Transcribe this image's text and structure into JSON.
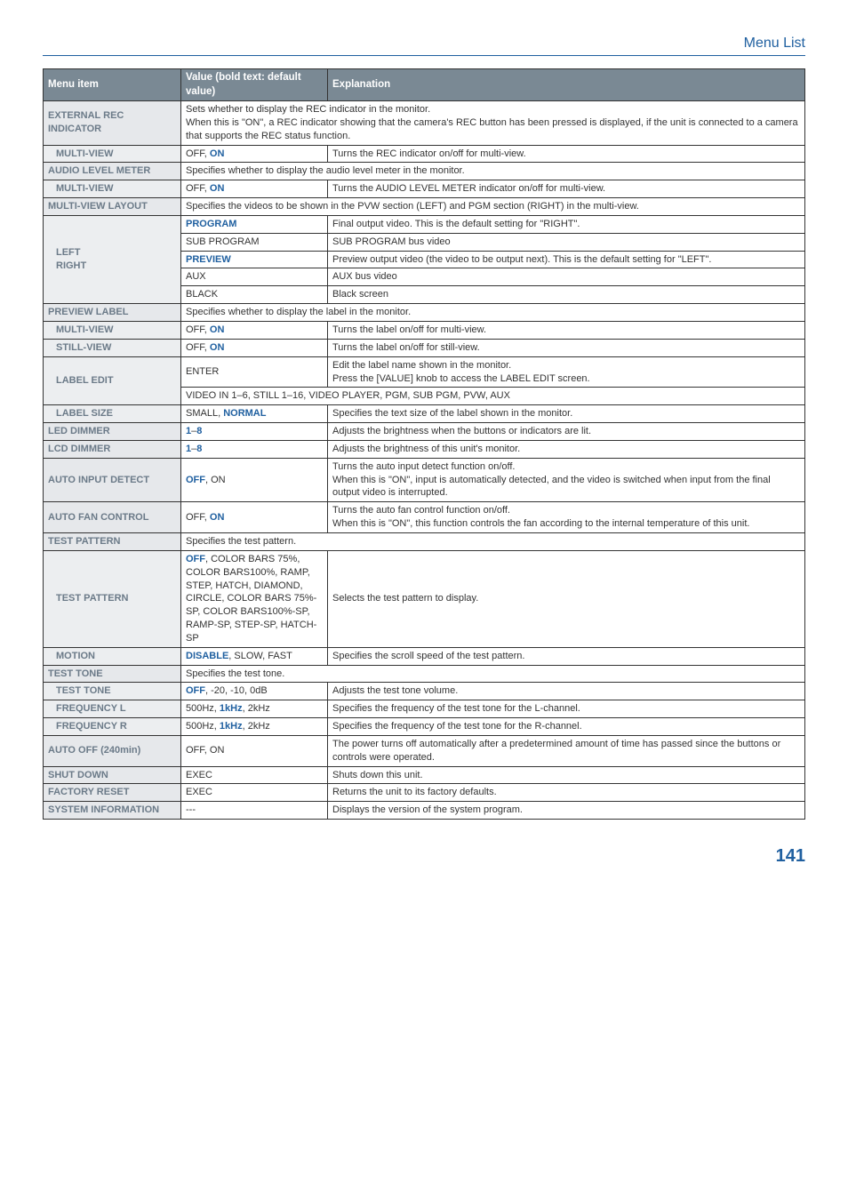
{
  "header": {
    "title": "Menu List"
  },
  "columns": {
    "c1": "Menu item",
    "c2": "Value (bold text: default value)",
    "c3": "Explanation"
  },
  "rows": [
    {
      "t": "row",
      "menuCls": "menu",
      "menuSpan": 1,
      "menu": "EXTERNAL REC INDICATOR",
      "expl_colspan": 2,
      "expl": "Sets whether to display the REC indicator in the monitor.\nWhen this is \"ON\", a REC indicator showing that the camera's REC button has been pressed is displayed, if the unit is connected to a camera that supports the REC status function."
    },
    {
      "t": "row",
      "menuCls": "sub1",
      "menu": "MULTI-VIEW",
      "val_pre": "OFF, ",
      "val_bold": "ON",
      "val_post": "",
      "expl": "Turns the REC indicator on/off for multi-view."
    },
    {
      "t": "row",
      "menuCls": "menu",
      "menu": "AUDIO LEVEL METER",
      "expl_colspan": 2,
      "expl": "Specifies whether to display the audio level meter in the monitor."
    },
    {
      "t": "row",
      "menuCls": "sub1",
      "menu": "MULTI-VIEW",
      "val_pre": "OFF, ",
      "val_bold": "ON",
      "val_post": "",
      "expl": "Turns the AUDIO LEVEL METER indicator on/off for multi-view."
    },
    {
      "t": "row",
      "menuCls": "menu",
      "menu": "MULTI-VIEW LAYOUT",
      "expl_colspan": 2,
      "expl": "Specifies the videos to be shown in the PVW section (LEFT) and PGM section (RIGHT) in the multi-view."
    },
    {
      "t": "row",
      "menuCls": "sub1",
      "menuRowspan": 5,
      "menu": "LEFT\nRIGHT",
      "val_pre": "",
      "val_bold": "PROGRAM",
      "val_post": "",
      "expl": "Final output video. This is the default setting for \"RIGHT\"."
    },
    {
      "t": "cont",
      "val_pre": "SUB PROGRAM",
      "val_bold": "",
      "val_post": "",
      "expl": "SUB PROGRAM bus video"
    },
    {
      "t": "cont",
      "val_pre": "",
      "val_bold": "PREVIEW",
      "val_post": "",
      "expl": "Preview output video (the video to be output next). This is the default setting for \"LEFT\"."
    },
    {
      "t": "cont",
      "val_pre": "AUX",
      "val_bold": "",
      "val_post": "",
      "expl": "AUX bus video"
    },
    {
      "t": "cont",
      "val_pre": "BLACK",
      "val_bold": "",
      "val_post": "",
      "expl": "Black screen"
    },
    {
      "t": "row",
      "menuCls": "menu",
      "menu": "PREVIEW LABEL",
      "expl_colspan": 2,
      "expl": "Specifies whether to display the label in the monitor."
    },
    {
      "t": "row",
      "menuCls": "sub1",
      "menu": "MULTI-VIEW",
      "val_pre": "OFF, ",
      "val_bold": "ON",
      "val_post": "",
      "expl": "Turns the label on/off for multi-view."
    },
    {
      "t": "row",
      "menuCls": "sub1",
      "menu": "STILL-VIEW",
      "val_pre": "OFF, ",
      "val_bold": "ON",
      "val_post": "",
      "expl": "Turns the label on/off for still-view."
    },
    {
      "t": "row",
      "menuCls": "sub1",
      "menuRowspan": 2,
      "menu": "LABEL EDIT",
      "val_pre": "ENTER",
      "val_bold": "",
      "val_post": "",
      "expl": "Edit the label name shown in the monitor.\nPress the [VALUE] knob to access the LABEL EDIT screen."
    },
    {
      "t": "cont",
      "expl_colspan": 2,
      "expl": "VIDEO IN 1–6, STILL 1–16, VIDEO PLAYER, PGM, SUB PGM, PVW, AUX"
    },
    {
      "t": "row",
      "menuCls": "sub1",
      "menu": "LABEL SIZE",
      "val_pre": "SMALL, ",
      "val_bold": "NORMAL",
      "val_post": "",
      "expl": "Specifies the text size of the label shown in the monitor."
    },
    {
      "t": "row",
      "menuCls": "menu",
      "menu": "LED DIMMER",
      "val_pre": "",
      "val_bold": "1",
      "val_post": "–",
      "val_bold2": "8",
      "expl": "Adjusts the brightness when the buttons or indicators are lit."
    },
    {
      "t": "row",
      "menuCls": "menu",
      "menu": "LCD DIMMER",
      "val_pre": "",
      "val_bold": "1",
      "val_post": "–",
      "val_bold2": "8",
      "expl": "Adjusts the brightness of this unit's monitor."
    },
    {
      "t": "row",
      "menuCls": "menu",
      "menu": "AUTO INPUT DETECT",
      "val_pre": "",
      "val_bold": "OFF",
      "val_post": ", ON",
      "expl": "Turns the auto input detect function on/off.\nWhen this is \"ON\", input is automatically detected, and the video is switched when input from the final output video is interrupted."
    },
    {
      "t": "row",
      "menuCls": "menu",
      "menu": "AUTO FAN CONTROL",
      "val_pre": "OFF, ",
      "val_bold": "ON",
      "val_post": "",
      "expl": "Turns the auto fan control function on/off.\nWhen this is \"ON\", this function controls the fan according to the internal temperature of this unit."
    },
    {
      "t": "row",
      "menuCls": "menu",
      "menu": "TEST PATTERN",
      "expl_colspan": 2,
      "expl": "Specifies the test pattern."
    },
    {
      "t": "row",
      "menuCls": "sub1",
      "menu": "TEST PATTERN",
      "val_pre": "",
      "val_bold": "OFF",
      "val_post": ", COLOR BARS 75%, COLOR BARS100%, RAMP, STEP, HATCH, DIAMOND, CIRCLE, COLOR BARS 75%-SP,\nCOLOR BARS100%-SP, RAMP-SP, STEP-SP, HATCH-SP",
      "expl": "Selects the test pattern to display."
    },
    {
      "t": "row",
      "menuCls": "sub1",
      "menu": "MOTION",
      "val_pre": "",
      "val_bold": "DISABLE",
      "val_post": ", SLOW, FAST",
      "expl": "Specifies the scroll speed of the test pattern."
    },
    {
      "t": "row",
      "menuCls": "menu",
      "menu": "TEST TONE",
      "expl_colspan": 2,
      "expl": "Specifies the test tone."
    },
    {
      "t": "row",
      "menuCls": "sub1",
      "menu": "TEST TONE",
      "val_pre": "",
      "val_bold": "OFF",
      "val_post": ", -20, -10, 0dB",
      "expl": "Adjusts the test tone volume."
    },
    {
      "t": "row",
      "menuCls": "sub1",
      "menu": "FREQUENCY L",
      "val_pre": "500Hz, ",
      "val_bold": "1kHz",
      "val_post": ", 2kHz",
      "expl": "Specifies the frequency of the test tone for the L-channel."
    },
    {
      "t": "row",
      "menuCls": "sub1",
      "menu": "FREQUENCY R",
      "val_pre": "500Hz, ",
      "val_bold": "1kHz",
      "val_post": ", 2kHz",
      "expl": "Specifies the frequency of the test tone for the R-channel."
    },
    {
      "t": "row",
      "menuCls": "menu",
      "menu": "AUTO OFF (240min)",
      "val_pre": "OFF, ON",
      "val_bold": "",
      "val_post": "",
      "expl": "The power turns off automatically after a predetermined amount of time has passed since the buttons or controls were operated."
    },
    {
      "t": "row",
      "menuCls": "menu",
      "menu": "SHUT DOWN",
      "val_pre": "EXEC",
      "val_bold": "",
      "val_post": "",
      "expl": "Shuts down this unit."
    },
    {
      "t": "row",
      "menuCls": "menu",
      "menu": "FACTORY RESET",
      "val_pre": "EXEC",
      "val_bold": "",
      "val_post": "",
      "expl": "Returns the unit to its factory defaults."
    },
    {
      "t": "row",
      "menuCls": "menu",
      "menu": "SYSTEM INFORMATION",
      "val_pre": "---",
      "val_bold": "",
      "val_post": "",
      "expl": "Displays the version of the system program."
    }
  ],
  "page_number": "141"
}
